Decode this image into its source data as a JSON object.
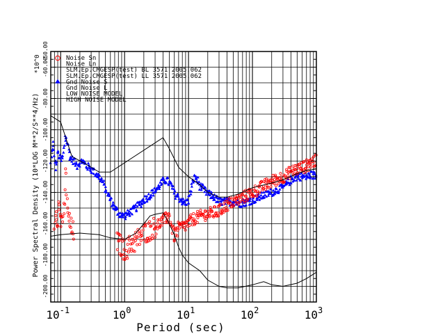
{
  "chart_data": {
    "type": "scatter",
    "title": "",
    "xlabel": "Period (sec)",
    "ylabel": "Power Spectral Density (10*LOG M**2/S**4/Hz)",
    "y_multiplier": "*10^0",
    "x_scale": "log",
    "xlim": [
      0.07,
      1000
    ],
    "ylim": [
      -210,
      -50
    ],
    "grid": true,
    "legend_position": "top-left",
    "x_tick_labels": [
      {
        "base": "10",
        "exp": "-1",
        "value": 0.1
      },
      {
        "base": "10",
        "exp": "0",
        "value": 1
      },
      {
        "base": "10",
        "exp": "1",
        "value": 10
      },
      {
        "base": "10",
        "exp": "2",
        "value": 100
      },
      {
        "base": "10",
        "exp": "3",
        "value": 1000
      }
    ],
    "y_tick_labels": [
      {
        "label": "-60.00",
        "value": -60
      },
      {
        "label": "-80.00",
        "value": -80
      },
      {
        "label": "-100.00",
        "value": -100
      },
      {
        "label": "-120.00",
        "value": -120
      },
      {
        "label": "-140.00",
        "value": -140
      },
      {
        "label": "-160.00",
        "value": -160
      },
      {
        "label": "-180.00",
        "value": -180
      },
      {
        "label": "-200.00",
        "value": -200
      }
    ],
    "top_tick_label": "-50.00",
    "legend": [
      {
        "label": "Noise Sn",
        "symbol": "circle",
        "color": "#ff0000"
      },
      {
        "label": "Noise Ln",
        "symbol": "none",
        "color": "#000000"
      },
      {
        "label": "SLM.Ep.CMGESP(test) BL 3571 2005.062",
        "symbol": "none",
        "color": "#000000"
      },
      {
        "label": "SLM.Ep.CMGESP(test) LL 3571 2005.062",
        "symbol": "none",
        "color": "#000000"
      },
      {
        "label": "Gnd Noise S",
        "symbol": "triangle",
        "color": "#0000ff"
      },
      {
        "label": "Gnd Noise L",
        "symbol": "none",
        "color": "#000000"
      },
      {
        "label": "LOW NOISE MODEL",
        "symbol": "line",
        "color": "#000000"
      },
      {
        "label": "HIGH NOISE MODEL",
        "symbol": "line",
        "color": "#000000"
      }
    ],
    "series": [
      {
        "name": "Gnd Noise S",
        "color": "#0000ff",
        "marker": "triangle",
        "points": [
          [
            0.07,
            -122
          ],
          [
            0.075,
            -108
          ],
          [
            0.08,
            -118
          ],
          [
            0.085,
            -125
          ],
          [
            0.09,
            -114
          ],
          [
            0.1,
            -120
          ],
          [
            0.11,
            -117
          ],
          [
            0.12,
            -103
          ],
          [
            0.13,
            -110
          ],
          [
            0.14,
            -118
          ],
          [
            0.16,
            -120
          ],
          [
            0.18,
            -123
          ],
          [
            0.2,
            -121
          ],
          [
            0.22,
            -120
          ],
          [
            0.25,
            -123
          ],
          [
            0.3,
            -125
          ],
          [
            0.35,
            -128
          ],
          [
            0.4,
            -130
          ],
          [
            0.45,
            -133
          ],
          [
            0.5,
            -138
          ],
          [
            0.6,
            -145
          ],
          [
            0.7,
            -150
          ],
          [
            0.8,
            -153
          ],
          [
            0.9,
            -155
          ],
          [
            1.0,
            -155
          ],
          [
            1.2,
            -153
          ],
          [
            1.5,
            -150
          ],
          [
            2.0,
            -145
          ],
          [
            2.5,
            -142
          ],
          [
            3.0,
            -139
          ],
          [
            3.5,
            -136
          ],
          [
            4.0,
            -133
          ],
          [
            4.5,
            -132
          ],
          [
            5.0,
            -134
          ],
          [
            5.5,
            -136
          ],
          [
            6.0,
            -141
          ],
          [
            7.0,
            -143
          ],
          [
            8.0,
            -146
          ],
          [
            9.0,
            -147
          ],
          [
            10.0,
            -145
          ],
          [
            11.0,
            -138
          ],
          [
            12.0,
            -132
          ],
          [
            13.0,
            -130
          ],
          [
            14.0,
            -133
          ],
          [
            15.0,
            -136
          ],
          [
            17.0,
            -138
          ],
          [
            20.0,
            -141
          ],
          [
            25.0,
            -143
          ],
          [
            30.0,
            -146
          ],
          [
            40.0,
            -146
          ],
          [
            50.0,
            -146
          ],
          [
            60.0,
            -147
          ],
          [
            70.0,
            -147
          ],
          [
            80.0,
            -146
          ],
          [
            100.0,
            -145
          ],
          [
            150.0,
            -142
          ],
          [
            200.0,
            -140
          ],
          [
            300.0,
            -137
          ],
          [
            400.0,
            -132
          ],
          [
            500.0,
            -130
          ],
          [
            600.0,
            -130
          ],
          [
            700.0,
            -130
          ],
          [
            800.0,
            -129
          ],
          [
            900.0,
            -129
          ],
          [
            1000.0,
            -130
          ]
        ]
      },
      {
        "name": "Noise Sn",
        "color": "#ff0000",
        "marker": "circle",
        "points": [
          [
            0.08,
            -158
          ],
          [
            0.085,
            -150
          ],
          [
            0.09,
            -157
          ],
          [
            0.095,
            -148
          ],
          [
            0.1,
            -160
          ],
          [
            0.105,
            -152
          ],
          [
            0.11,
            -164
          ],
          [
            0.115,
            -145
          ],
          [
            0.12,
            -128
          ],
          [
            0.125,
            -140
          ],
          [
            0.13,
            -155
          ],
          [
            0.14,
            -160
          ],
          [
            0.15,
            -165
          ],
          [
            0.8,
            -172
          ],
          [
            0.9,
            -175
          ],
          [
            1.0,
            -177
          ],
          [
            1.2,
            -174
          ],
          [
            1.5,
            -171
          ],
          [
            1.8,
            -168
          ],
          [
            2.0,
            -166
          ],
          [
            2.5,
            -164
          ],
          [
            3.0,
            -162
          ],
          [
            5.0,
            -155
          ],
          [
            5.5,
            -162
          ],
          [
            6.0,
            -168
          ],
          [
            7.0,
            -163
          ],
          [
            8.0,
            -162
          ],
          [
            9.0,
            -161
          ],
          [
            10.0,
            -160
          ],
          [
            11.0,
            -158
          ],
          [
            12.0,
            -157
          ],
          [
            14.0,
            -156
          ],
          [
            16.0,
            -155
          ],
          [
            18.0,
            -154
          ],
          [
            20.0,
            -154
          ],
          [
            25.0,
            -153
          ],
          [
            30.0,
            -152
          ],
          [
            40.0,
            -148
          ],
          [
            50.0,
            -146
          ],
          [
            60.0,
            -145
          ],
          [
            80.0,
            -142
          ],
          [
            100.0,
            -140
          ],
          [
            150.0,
            -136
          ],
          [
            200.0,
            -133
          ],
          [
            300.0,
            -130
          ],
          [
            400.0,
            -127
          ],
          [
            500.0,
            -125
          ],
          [
            600.0,
            -124
          ],
          [
            700.0,
            -123
          ],
          [
            800.0,
            -121
          ],
          [
            900.0,
            -120
          ],
          [
            1000.0,
            -120
          ]
        ]
      },
      {
        "name": "HIGH NOISE MODEL",
        "color": "#000000",
        "marker": "line",
        "points": [
          [
            0.07,
            -91
          ],
          [
            0.1,
            -95
          ],
          [
            0.15,
            -117
          ],
          [
            0.25,
            -122
          ],
          [
            0.4,
            -127
          ],
          [
            0.6,
            -127
          ],
          [
            4.0,
            -105
          ],
          [
            5.0,
            -112
          ],
          [
            7.0,
            -124
          ],
          [
            10.0,
            -130
          ],
          [
            15.0,
            -135
          ],
          [
            20.0,
            -140
          ],
          [
            30.0,
            -143
          ],
          [
            40.0,
            -143
          ],
          [
            60.0,
            -141
          ],
          [
            100.0,
            -137
          ],
          [
            200.0,
            -134
          ],
          [
            300.0,
            -132
          ],
          [
            500.0,
            -128
          ],
          [
            700.0,
            -126
          ],
          [
            1000.0,
            -125
          ]
        ]
      },
      {
        "name": "LOW NOISE MODEL",
        "color": "#000000",
        "marker": "line",
        "points": [
          [
            0.07,
            -168
          ],
          [
            0.1,
            -167
          ],
          [
            0.2,
            -166
          ],
          [
            0.4,
            -167
          ],
          [
            0.6,
            -169
          ],
          [
            1.0,
            -170
          ],
          [
            1.5,
            -166
          ],
          [
            2.0,
            -160
          ],
          [
            2.5,
            -155
          ],
          [
            3.0,
            -154
          ],
          [
            4.0,
            -153
          ],
          [
            5.0,
            -160
          ],
          [
            6.0,
            -167
          ],
          [
            7.0,
            -175
          ],
          [
            8.0,
            -180
          ],
          [
            10.0,
            -185
          ],
          [
            15.0,
            -190
          ],
          [
            20.0,
            -196
          ],
          [
            30.0,
            -200
          ],
          [
            40.0,
            -201
          ],
          [
            60.0,
            -201
          ],
          [
            100.0,
            -199
          ],
          [
            150.0,
            -197
          ],
          [
            200.0,
            -199
          ],
          [
            300.0,
            -200
          ],
          [
            500.0,
            -198
          ],
          [
            700.0,
            -195
          ],
          [
            1000.0,
            -191
          ]
        ]
      }
    ]
  }
}
